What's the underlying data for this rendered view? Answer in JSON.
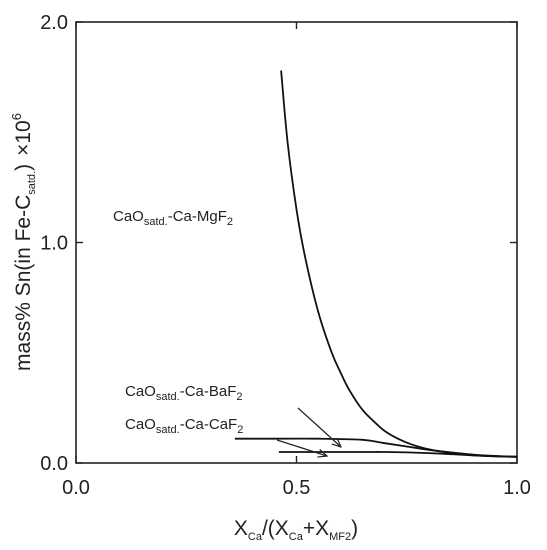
{
  "chart_data": {
    "type": "line",
    "title": "",
    "xlabel": {
      "main": "X",
      "sub1": "Ca",
      "mid": "/(X",
      "sub2": "Ca",
      "plus": "+X",
      "sub3": "MF2",
      "close": ")"
    },
    "ylabel": {
      "main": "mass% Sn(in Fe-C",
      "sub": "satd.",
      "close": ")",
      "times": "×10",
      "exp": "6"
    },
    "xlim": [
      0.0,
      1.0
    ],
    "ylim": [
      0.0,
      2.0
    ],
    "x_ticks": [
      0.0,
      0.5,
      1.0
    ],
    "y_ticks": [
      0.0,
      1.0,
      2.0
    ],
    "x_tick_labels": [
      "0.0",
      "0.5",
      "1.0"
    ],
    "y_tick_labels": [
      "0.0",
      "1.0",
      "2.0"
    ],
    "grid": false,
    "series": [
      {
        "name": "CaO-Ca-MgF2",
        "x": [
          0.465,
          0.48,
          0.5,
          0.52,
          0.55,
          0.58,
          0.6,
          0.62,
          0.65,
          0.68,
          0.7,
          0.73,
          0.76,
          0.8,
          0.85,
          0.9,
          0.95,
          1.0
        ],
        "y": [
          1.78,
          1.45,
          1.15,
          0.93,
          0.68,
          0.5,
          0.41,
          0.33,
          0.24,
          0.18,
          0.145,
          0.11,
          0.085,
          0.062,
          0.045,
          0.035,
          0.03,
          0.028
        ]
      },
      {
        "name": "CaO-Ca-BaF2",
        "x": [
          0.36,
          0.45,
          0.55,
          0.65,
          0.7,
          0.75,
          0.8,
          0.85,
          0.9,
          0.95,
          1.0
        ],
        "y": [
          0.11,
          0.11,
          0.11,
          0.105,
          0.09,
          0.075,
          0.06,
          0.048,
          0.038,
          0.032,
          0.028
        ]
      },
      {
        "name": "CaO-Ca-CaF2",
        "x": [
          0.46,
          0.55,
          0.65,
          0.7,
          0.75,
          0.8,
          0.85,
          0.9,
          0.95,
          1.0
        ],
        "y": [
          0.05,
          0.05,
          0.05,
          0.05,
          0.048,
          0.045,
          0.04,
          0.035,
          0.031,
          0.028
        ]
      }
    ],
    "annotations": [
      {
        "main": "CaO",
        "sub": "satd.",
        "rest": "-Ca-MgF",
        "sub2": "2"
      },
      {
        "main": "CaO",
        "sub": "satd.",
        "rest": "-Ca-BaF",
        "sub2": "2"
      },
      {
        "main": "CaO",
        "sub": "satd.",
        "rest": "-Ca-CaF",
        "sub2": "2"
      }
    ]
  }
}
